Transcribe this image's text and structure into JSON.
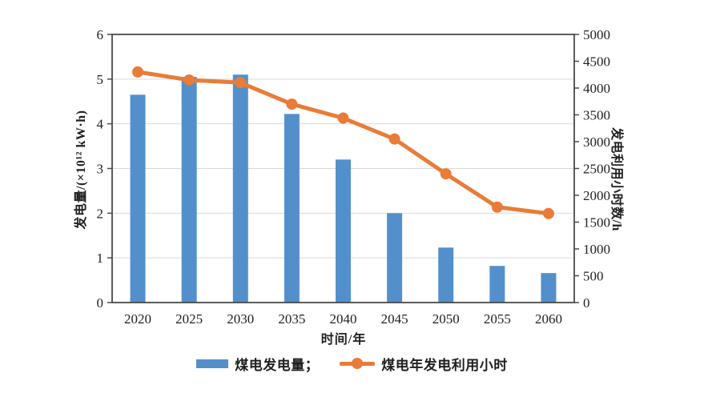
{
  "chart_data": {
    "type": "bar",
    "subtype": "bar+line combo, dual y-axis",
    "title": "",
    "categories": [
      "2020",
      "2025",
      "2030",
      "2035",
      "2040",
      "2045",
      "2050",
      "2055",
      "2060"
    ],
    "series": [
      {
        "name": "煤电发电量",
        "type": "bar",
        "axis": "left",
        "color": "#5390cb",
        "values": [
          4.65,
          5.05,
          5.1,
          4.22,
          3.2,
          2.0,
          1.23,
          0.82,
          0.66
        ]
      },
      {
        "name": "煤电年发电利用小时",
        "type": "line",
        "axis": "right",
        "color": "#e87c38",
        "values": [
          4300,
          4150,
          4100,
          3700,
          3440,
          3050,
          2400,
          1780,
          1660
        ]
      }
    ],
    "x_axis": {
      "label": "时间/年"
    },
    "left_axis": {
      "label": "发电量/(×10¹² kW·h)",
      "min": 0,
      "max": 6,
      "step": 1
    },
    "right_axis": {
      "label": "发电利用小时数/h",
      "min": 0,
      "max": 5000,
      "step": 500
    },
    "legend": {
      "position": "bottom",
      "items": [
        {
          "label": "煤电发电量；",
          "swatch": "bar"
        },
        {
          "label": "煤电年发电利用小时",
          "swatch": "line-dot"
        }
      ]
    },
    "grid": "horizontal gridlines at left-axis integers",
    "colors": {
      "bar_blue": "#5390cb",
      "line_orange": "#e87c38",
      "gridline": "#d9d9d9",
      "axis_border": "#4a4a4a",
      "text": "#1f1f1f",
      "background": "#ffffff"
    }
  }
}
